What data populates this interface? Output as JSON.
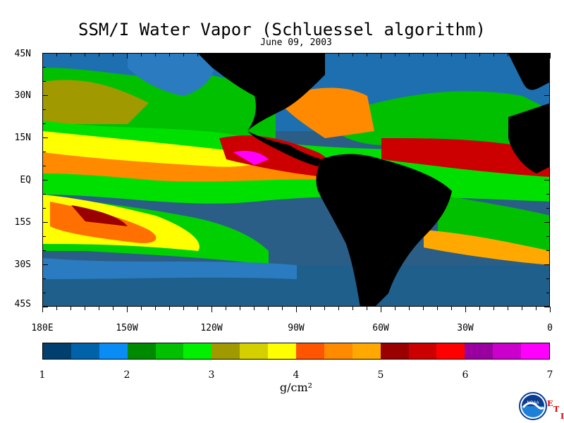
{
  "title": "SSM/I Water Vapor (Schluessel algorithm)",
  "date": "June 09, 2003",
  "lat_labels": [
    "45N",
    "30N",
    "15N",
    "EQ",
    "15S",
    "30S",
    "45S"
  ],
  "lon_labels": [
    "180E",
    "150W",
    "120W",
    "90W",
    "60W",
    "30W",
    "0"
  ],
  "colorbar": {
    "colors": [
      "#003f6e",
      "#0062a8",
      "#0a8cf5",
      "#008a00",
      "#00c000",
      "#00f000",
      "#a09a00",
      "#d4d000",
      "#ffff00",
      "#ff5500",
      "#ff8a00",
      "#ffa800",
      "#9a0000",
      "#cc0000",
      "#ff0000",
      "#9a00a0",
      "#cc00cc",
      "#ff00ff"
    ],
    "tick_labels": [
      "1",
      "2",
      "3",
      "4",
      "5",
      "6",
      "7"
    ],
    "min": 1,
    "max": 7
  },
  "unit": "g/cm²",
  "land_color": "#000000",
  "logo_text": "NOAA",
  "eti": [
    "E",
    "T",
    "I"
  ]
}
